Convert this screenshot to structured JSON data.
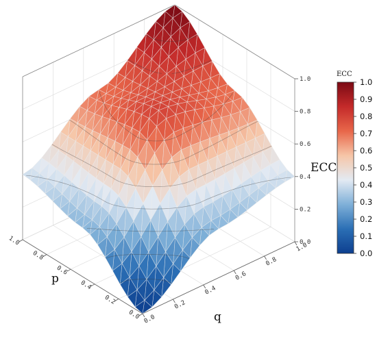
{
  "chart_data": {
    "type": "surface3d",
    "title": "",
    "xlabel": "q",
    "ylabel": "p",
    "zlabel": "ECC",
    "x_ticks": [
      "0.0",
      "0.2",
      "0.4",
      "0.6",
      "0.8",
      "1.0"
    ],
    "y_ticks": [
      "0.0",
      "0.2",
      "0.4",
      "0.6",
      "0.8",
      "1.0"
    ],
    "z_ticks": [
      "0.0",
      "0.2",
      "0.4",
      "0.6",
      "0.8",
      "1.0"
    ],
    "xlim": [
      0,
      1
    ],
    "ylim": [
      0,
      1
    ],
    "zlim": [
      0,
      1
    ],
    "grid": true,
    "surface_samples": {
      "p": [
        0.0,
        0.5,
        1.0
      ],
      "q": [
        0.0,
        0.5,
        1.0
      ],
      "ECC": [
        [
          0.0,
          0.3,
          0.4
        ],
        [
          0.3,
          0.8,
          0.7
        ],
        [
          0.4,
          0.7,
          1.0
        ]
      ]
    },
    "colorbar": {
      "title": "ECC",
      "ticks": [
        "0.0",
        "0.1",
        "0.2",
        "0.3",
        "0.4",
        "0.5",
        "0.6",
        "0.7",
        "0.8",
        "0.9",
        "1.0"
      ],
      "range": [
        0,
        1
      ],
      "colormap_stops": [
        "#0d3f8f",
        "#2b6fb5",
        "#7fb0d8",
        "#e3eaf3",
        "#f6c6a8",
        "#e8674a",
        "#c42a2a",
        "#7b0a14"
      ]
    }
  }
}
